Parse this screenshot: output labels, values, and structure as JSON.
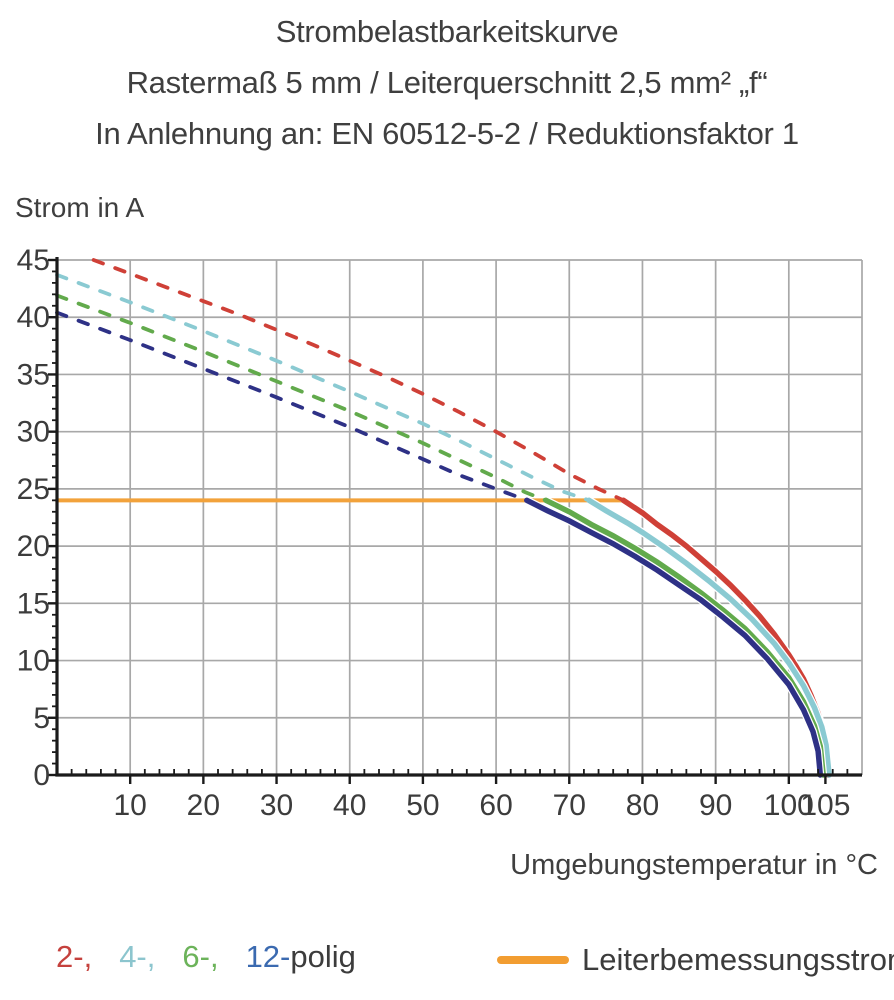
{
  "title": {
    "line1": "Strombelastbarkeitskurve",
    "line2": "Rastermaß 5 mm / Leiterquerschnitt 2,5 mm² „f“",
    "line3": "In Anlehnung an: EN 60512-5-2 / Reduktionsfaktor 1"
  },
  "chart_data": {
    "type": "line",
    "title": "Strombelastbarkeitskurve",
    "xlabel": "Umgebungstemperatur in °C",
    "ylabel": "Strom in A",
    "xlim": [
      0,
      110
    ],
    "ylim": [
      0,
      45
    ],
    "grid": true,
    "grid_color": "#a8a8a8",
    "axis_color": "#1a1a1a",
    "tick_text_color": "#3c3c3c",
    "x_tick_labels": [
      10,
      20,
      30,
      40,
      50,
      60,
      70,
      80,
      90,
      100,
      105
    ],
    "y_tick_labels": [
      0,
      5,
      10,
      15,
      20,
      25,
      30,
      35,
      40,
      45
    ],
    "x_gridline_step": 10,
    "y_gridline_step": 5,
    "x_minor_tick_step": 2,
    "y_minor_tick_step": 1,
    "reference_line": {
      "label": "Leiterbemessungsstrom",
      "current_a": 24,
      "t_start": 0,
      "t_end": 77.4,
      "color": "#f2a23b"
    },
    "series": [
      {
        "name": "2-polig",
        "color": "#cf4037",
        "dashed": [
          [
            5,
            45
          ],
          [
            10,
            43.8
          ],
          [
            15,
            42.6
          ],
          [
            20,
            41.4
          ],
          [
            25,
            40.2
          ],
          [
            30,
            38.9
          ],
          [
            35,
            37.6
          ],
          [
            40,
            36.2
          ],
          [
            45,
            34.8
          ],
          [
            50,
            33.3
          ],
          [
            55,
            31.7
          ],
          [
            60,
            30.0
          ],
          [
            65,
            28.2
          ],
          [
            70,
            26.3
          ],
          [
            74,
            25.0
          ],
          [
            77.4,
            24
          ]
        ],
        "solid": [
          [
            77.4,
            24
          ],
          [
            80,
            22.9
          ],
          [
            82,
            21.9
          ],
          [
            84,
            21.0
          ],
          [
            86,
            20.0
          ],
          [
            88,
            18.9
          ],
          [
            90,
            17.8
          ],
          [
            92,
            16.6
          ],
          [
            94,
            15.3
          ],
          [
            96,
            13.9
          ],
          [
            98,
            12.3
          ],
          [
            100,
            10.5
          ],
          [
            101,
            9.5
          ],
          [
            102,
            8.4
          ],
          [
            103,
            7.0
          ],
          [
            104,
            5.4
          ],
          [
            104.8,
            3.5
          ],
          [
            105.2,
            2.0
          ],
          [
            105.4,
            0
          ]
        ]
      },
      {
        "name": "4-polig",
        "color": "#8acad2",
        "dashed": [
          [
            0,
            43.7
          ],
          [
            10,
            41.3
          ],
          [
            20,
            38.8
          ],
          [
            30,
            36.2
          ],
          [
            40,
            33.5
          ],
          [
            50,
            30.7
          ],
          [
            55,
            29.2
          ],
          [
            60,
            27.6
          ],
          [
            65,
            26.0
          ],
          [
            69,
            24.8
          ],
          [
            72.7,
            24
          ]
        ],
        "solid": [
          [
            72.7,
            24
          ],
          [
            75,
            23.1
          ],
          [
            78,
            22.0
          ],
          [
            80,
            21.2
          ],
          [
            83,
            19.9
          ],
          [
            86,
            18.5
          ],
          [
            89,
            17.0
          ],
          [
            92,
            15.4
          ],
          [
            95,
            13.6
          ],
          [
            98,
            11.5
          ],
          [
            100,
            9.8
          ],
          [
            102,
            7.8
          ],
          [
            103.5,
            5.9
          ],
          [
            104.5,
            4.2
          ],
          [
            105.1,
            2.6
          ],
          [
            105.5,
            0
          ]
        ]
      },
      {
        "name": "6-polig",
        "color": "#62aa4c",
        "dashed": [
          [
            0,
            41.9
          ],
          [
            10,
            39.5
          ],
          [
            20,
            37.0
          ],
          [
            30,
            34.4
          ],
          [
            40,
            31.8
          ],
          [
            50,
            29.0
          ],
          [
            55,
            27.5
          ],
          [
            60,
            26.0
          ],
          [
            64,
            24.7
          ],
          [
            66.8,
            24
          ]
        ],
        "solid": [
          [
            66.8,
            24
          ],
          [
            70,
            23.0
          ],
          [
            73,
            21.9
          ],
          [
            76,
            20.9
          ],
          [
            79,
            19.8
          ],
          [
            82,
            18.6
          ],
          [
            85,
            17.3
          ],
          [
            88,
            15.9
          ],
          [
            91,
            14.4
          ],
          [
            94,
            12.8
          ],
          [
            97,
            10.8
          ],
          [
            100,
            8.5
          ],
          [
            102,
            6.4
          ],
          [
            103.5,
            4.3
          ],
          [
            104.3,
            2.5
          ],
          [
            104.7,
            0
          ]
        ]
      },
      {
        "name": "12-polig",
        "color": "#2e3186",
        "dashed": [
          [
            0,
            40.4
          ],
          [
            10,
            38.0
          ],
          [
            20,
            35.5
          ],
          [
            30,
            33.0
          ],
          [
            40,
            30.4
          ],
          [
            45,
            29.0
          ],
          [
            50,
            27.6
          ],
          [
            55,
            26.2
          ],
          [
            60,
            25.0
          ],
          [
            64.2,
            24
          ]
        ],
        "solid": [
          [
            64.2,
            24
          ],
          [
            67,
            23.1
          ],
          [
            70,
            22.2
          ],
          [
            73,
            21.2
          ],
          [
            76,
            20.2
          ],
          [
            79,
            19.1
          ],
          [
            82,
            17.9
          ],
          [
            85,
            16.6
          ],
          [
            88,
            15.3
          ],
          [
            91,
            13.8
          ],
          [
            94,
            12.2
          ],
          [
            97,
            10.2
          ],
          [
            100,
            7.9
          ],
          [
            102,
            5.7
          ],
          [
            103.3,
            3.8
          ],
          [
            104,
            2.1
          ],
          [
            104.3,
            0
          ]
        ]
      }
    ]
  },
  "legend": {
    "items": [
      {
        "label": "2-,",
        "color": "#c5413d"
      },
      {
        "label": "4-,",
        "color": "#8cc5ce"
      },
      {
        "label": "6-,",
        "color": "#6cb35a"
      },
      {
        "label": "12-",
        "color": "#3b6ab0"
      },
      {
        "label": "polig",
        "color": "#3c3c3c"
      }
    ],
    "reference": {
      "label": "Leiterbemessungsstrom",
      "color": "#f29d31"
    }
  }
}
